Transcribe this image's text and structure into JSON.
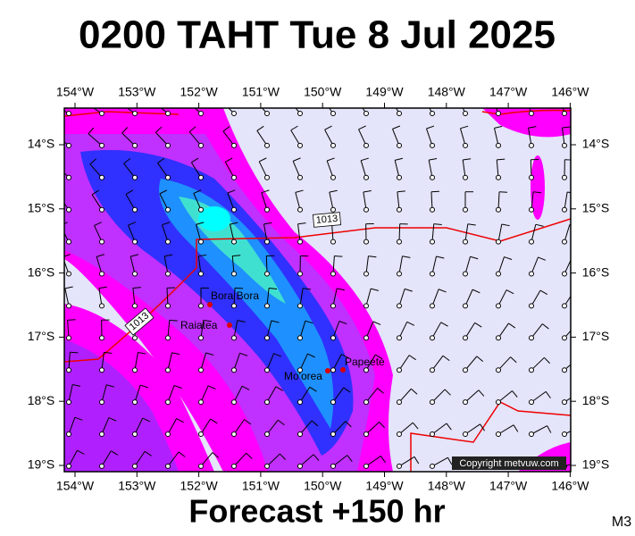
{
  "header": {
    "title": "0200 TAHT Tue 8 Jul 2025"
  },
  "map": {
    "lon_labels": [
      "154°W",
      "153°W",
      "152°W",
      "151°W",
      "150°W",
      "149°W",
      "148°W",
      "147°W",
      "146°W"
    ],
    "lat_labels": [
      "14°S",
      "15°S",
      "16°S",
      "17°S",
      "18°S",
      "19°S"
    ],
    "places": [
      "Bora Bora",
      "Raiatea",
      "Mo'orea",
      "Papeete"
    ],
    "isobar_labels": [
      "1013",
      "1013"
    ],
    "copyright": "Copyright metvuw.com"
  },
  "footer": {
    "forecast": "Forecast +150 hr",
    "model": "M3"
  }
}
